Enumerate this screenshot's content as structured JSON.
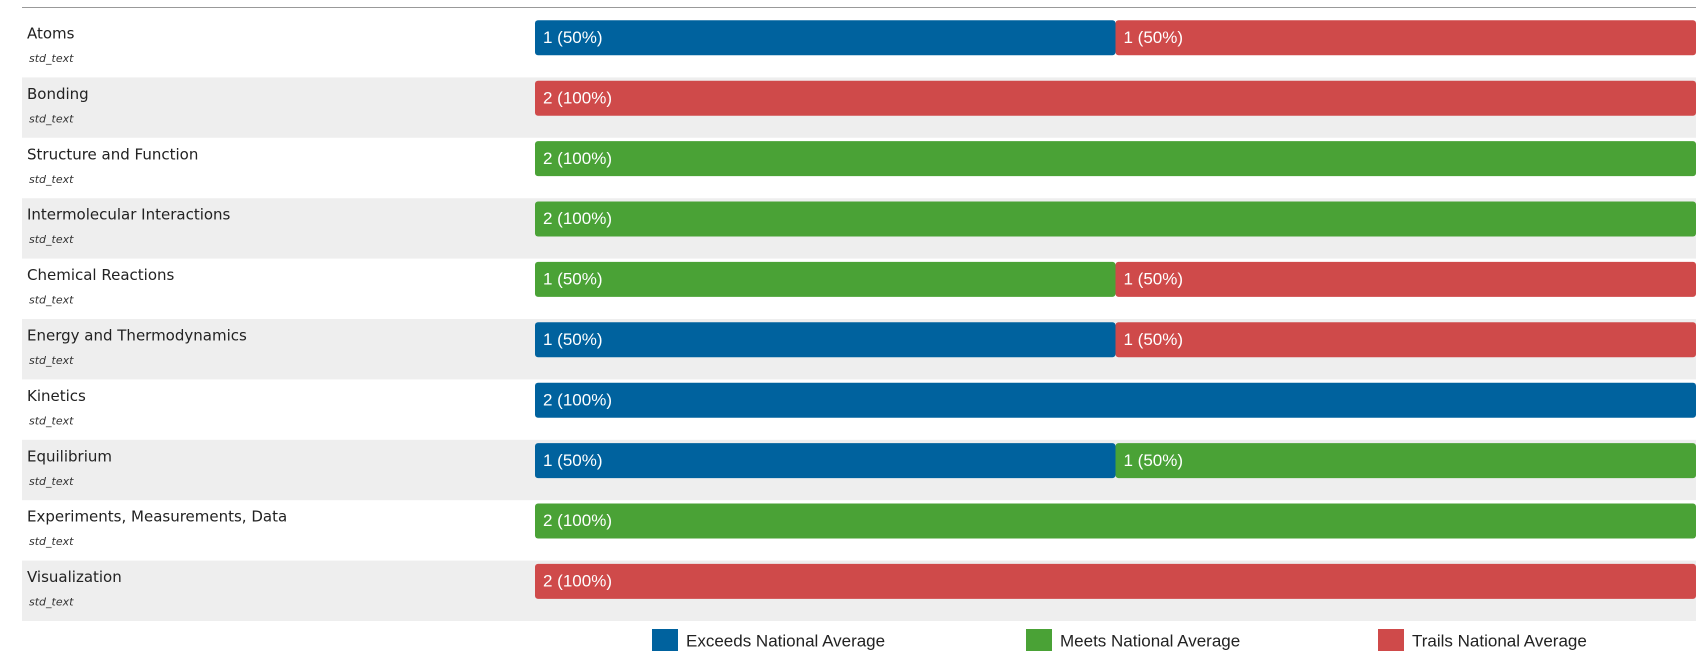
{
  "chart_data": {
    "type": "bar",
    "orientation": "horizontal",
    "stacked": true,
    "categories": [
      "Atoms",
      "Bonding",
      "Structure and Function",
      "Intermolecular Interactions",
      "Chemical Reactions",
      "Energy and Thermodynamics",
      "Kinetics",
      "Equilibrium",
      "Experiments, Measurements, Data",
      "Visualization"
    ],
    "category_notes": [
      "std_text",
      "std_text",
      "std_text",
      "std_text",
      "std_text",
      "std_text",
      "std_text",
      "std_text",
      "std_text",
      "std_text"
    ],
    "series": [
      {
        "name": "Exceeds National Average",
        "color": "#00629e",
        "values": [
          1,
          0,
          0,
          0,
          0,
          1,
          2,
          1,
          0,
          0
        ],
        "value_labels": [
          "1 (50%)",
          null,
          null,
          null,
          null,
          "1 (50%)",
          "2 (100%)",
          "1 (50%)",
          null,
          null
        ]
      },
      {
        "name": "Meets National Average",
        "color": "#4aa236",
        "values": [
          0,
          0,
          2,
          2,
          1,
          0,
          0,
          1,
          2,
          0
        ],
        "value_labels": [
          null,
          null,
          "2 (100%)",
          "2 (100%)",
          "1 (50%)",
          null,
          null,
          "1 (50%)",
          "2 (100%)",
          null
        ]
      },
      {
        "name": "Trails National Average",
        "color": "#cf4a4a",
        "values": [
          1,
          2,
          0,
          0,
          1,
          1,
          0,
          0,
          0,
          2
        ],
        "value_labels": [
          "1 (50%)",
          "2 (100%)",
          null,
          null,
          "1 (50%)",
          "1 (50%)",
          null,
          null,
          null,
          "2 (100%)"
        ]
      }
    ]
  }
}
